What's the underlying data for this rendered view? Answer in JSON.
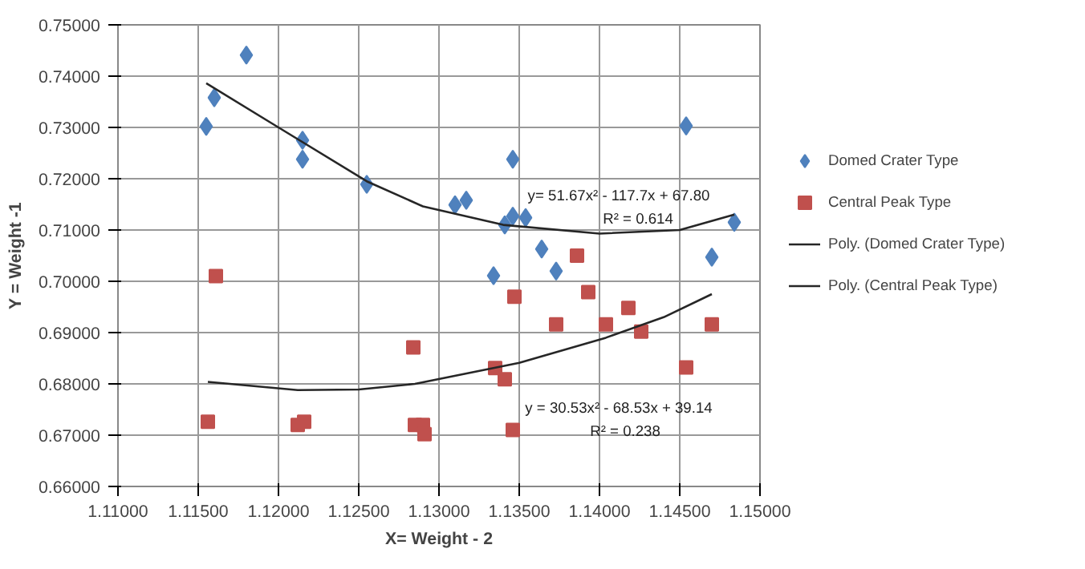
{
  "chart_data": {
    "type": "scatter",
    "xlabel": "X= Weight - 2",
    "ylabel": "Y = Weight -1",
    "xlim": [
      1.11,
      1.15
    ],
    "ylim": [
      0.66,
      0.75
    ],
    "xticks": [
      {
        "value": 1.11,
        "label": "1.11000"
      },
      {
        "value": 1.115,
        "label": "1.11500"
      },
      {
        "value": 1.12,
        "label": "1.12000"
      },
      {
        "value": 1.125,
        "label": "1.12500"
      },
      {
        "value": 1.13,
        "label": "1.13000"
      },
      {
        "value": 1.135,
        "label": "1.13500"
      },
      {
        "value": 1.14,
        "label": "1.14000"
      },
      {
        "value": 1.145,
        "label": "1.14500"
      },
      {
        "value": 1.15,
        "label": "1.15000"
      }
    ],
    "yticks": [
      {
        "value": 0.66,
        "label": "0.66000"
      },
      {
        "value": 0.67,
        "label": "0.67000"
      },
      {
        "value": 0.68,
        "label": "0.68000"
      },
      {
        "value": 0.69,
        "label": "0.69000"
      },
      {
        "value": 0.7,
        "label": "0.70000"
      },
      {
        "value": 0.71,
        "label": "0.71000"
      },
      {
        "value": 0.72,
        "label": "0.72000"
      },
      {
        "value": 0.73,
        "label": "0.73000"
      },
      {
        "value": 0.74,
        "label": "0.74000"
      },
      {
        "value": 0.75,
        "label": "0.75000"
      }
    ],
    "grid": true,
    "legend": "right",
    "series": [
      {
        "name": "Domed Crater Type",
        "marker": "diamond",
        "color": "#4f81bd",
        "x": [
          1.1155,
          1.116,
          1.118,
          1.1215,
          1.1215,
          1.1255,
          1.131,
          1.1317,
          1.1334,
          1.1341,
          1.1346,
          1.1346,
          1.1354,
          1.1364,
          1.1373,
          1.1454,
          1.147,
          1.1484
        ],
        "values": [
          0.7302,
          0.7358,
          0.7441,
          0.7275,
          0.7238,
          0.7189,
          0.7149,
          0.7158,
          0.7011,
          0.711,
          0.7238,
          0.7127,
          0.7124,
          0.7063,
          0.702,
          0.7303,
          0.7047,
          0.7115
        ]
      },
      {
        "name": "Central Peak Type",
        "marker": "square",
        "color": "#c0504d",
        "x": [
          1.1161,
          1.1156,
          1.1212,
          1.1216,
          1.1284,
          1.1285,
          1.129,
          1.1291,
          1.1335,
          1.1341,
          1.1346,
          1.1347,
          1.1373,
          1.1386,
          1.1393,
          1.1404,
          1.1418,
          1.1426,
          1.1454,
          1.147
        ],
        "values": [
          0.701,
          0.6726,
          0.672,
          0.6726,
          0.6871,
          0.672,
          0.672,
          0.6702,
          0.6831,
          0.6809,
          0.671,
          0.697,
          0.6916,
          0.705,
          0.6979,
          0.6916,
          0.6948,
          0.6902,
          0.6832,
          0.6916
        ]
      },
      {
        "name": "Poly. (Domed Crater Type)",
        "type": "line",
        "marker": "none",
        "color": "#262626",
        "x": [
          1.1155,
          1.12,
          1.1255,
          1.129,
          1.134,
          1.14,
          1.145,
          1.1484
        ],
        "values": [
          0.7386,
          0.73,
          0.7195,
          0.7146,
          0.711,
          0.7093,
          0.71,
          0.713
        ]
      },
      {
        "name": "Poly. (Central Peak Type)",
        "type": "line",
        "marker": "none",
        "color": "#262626",
        "x": [
          1.1156,
          1.1212,
          1.125,
          1.1285,
          1.135,
          1.1404,
          1.144,
          1.147
        ],
        "values": [
          0.6804,
          0.6788,
          0.6789,
          0.68,
          0.6841,
          0.689,
          0.693,
          0.6975
        ]
      }
    ],
    "annotations": [
      "y= 51.67x² - 117.7x + 67.80",
      "R² = 0.614",
      "y = 30.53x² - 68.53x + 39.14",
      "R² = 0.238"
    ]
  }
}
